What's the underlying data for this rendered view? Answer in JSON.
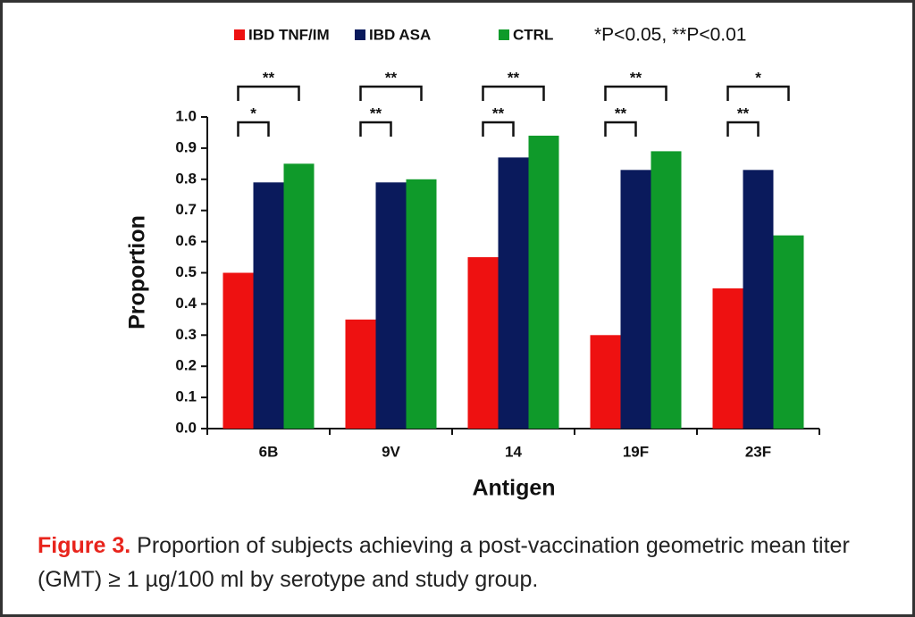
{
  "chart_data": {
    "type": "bar",
    "xlabel": "Antigen",
    "ylabel": "Proportion",
    "categories": [
      "6B",
      "9V",
      "14",
      "19F",
      "23F"
    ],
    "series": [
      {
        "name": "IBD TNF/IM",
        "color": "#ee1111",
        "values": [
          0.5,
          0.35,
          0.55,
          0.3,
          0.45
        ]
      },
      {
        "name": "IBD ASA",
        "color": "#0a1a5c",
        "values": [
          0.79,
          0.79,
          0.87,
          0.83,
          0.83
        ]
      },
      {
        "name": "CTRL",
        "color": "#0f9a2a",
        "values": [
          0.85,
          0.8,
          0.94,
          0.89,
          0.62
        ]
      }
    ],
    "significance_note": "*P<0.05, **P<0.01",
    "significance": [
      [
        "*",
        "**"
      ],
      [
        "**",
        "**"
      ],
      [
        "**",
        "**"
      ],
      [
        "**",
        "**"
      ],
      [
        "**",
        "*"
      ]
    ],
    "ylim": [
      0,
      1
    ],
    "yticks": [
      {
        "value": 0,
        "label": "0.0"
      },
      0.1,
      0.2,
      0.3,
      0.4,
      0.5,
      0.6,
      0.7,
      0.8,
      0.9,
      {
        "value": 1,
        "label": "1.0"
      }
    ],
    "grid": false
  },
  "caption": {
    "label": "Figure 3.",
    "text": "Proportion of subjects achieving a post-vaccination geometric mean titer (GMT) ≥ 1 µg/100 ml by serotype and study group."
  }
}
